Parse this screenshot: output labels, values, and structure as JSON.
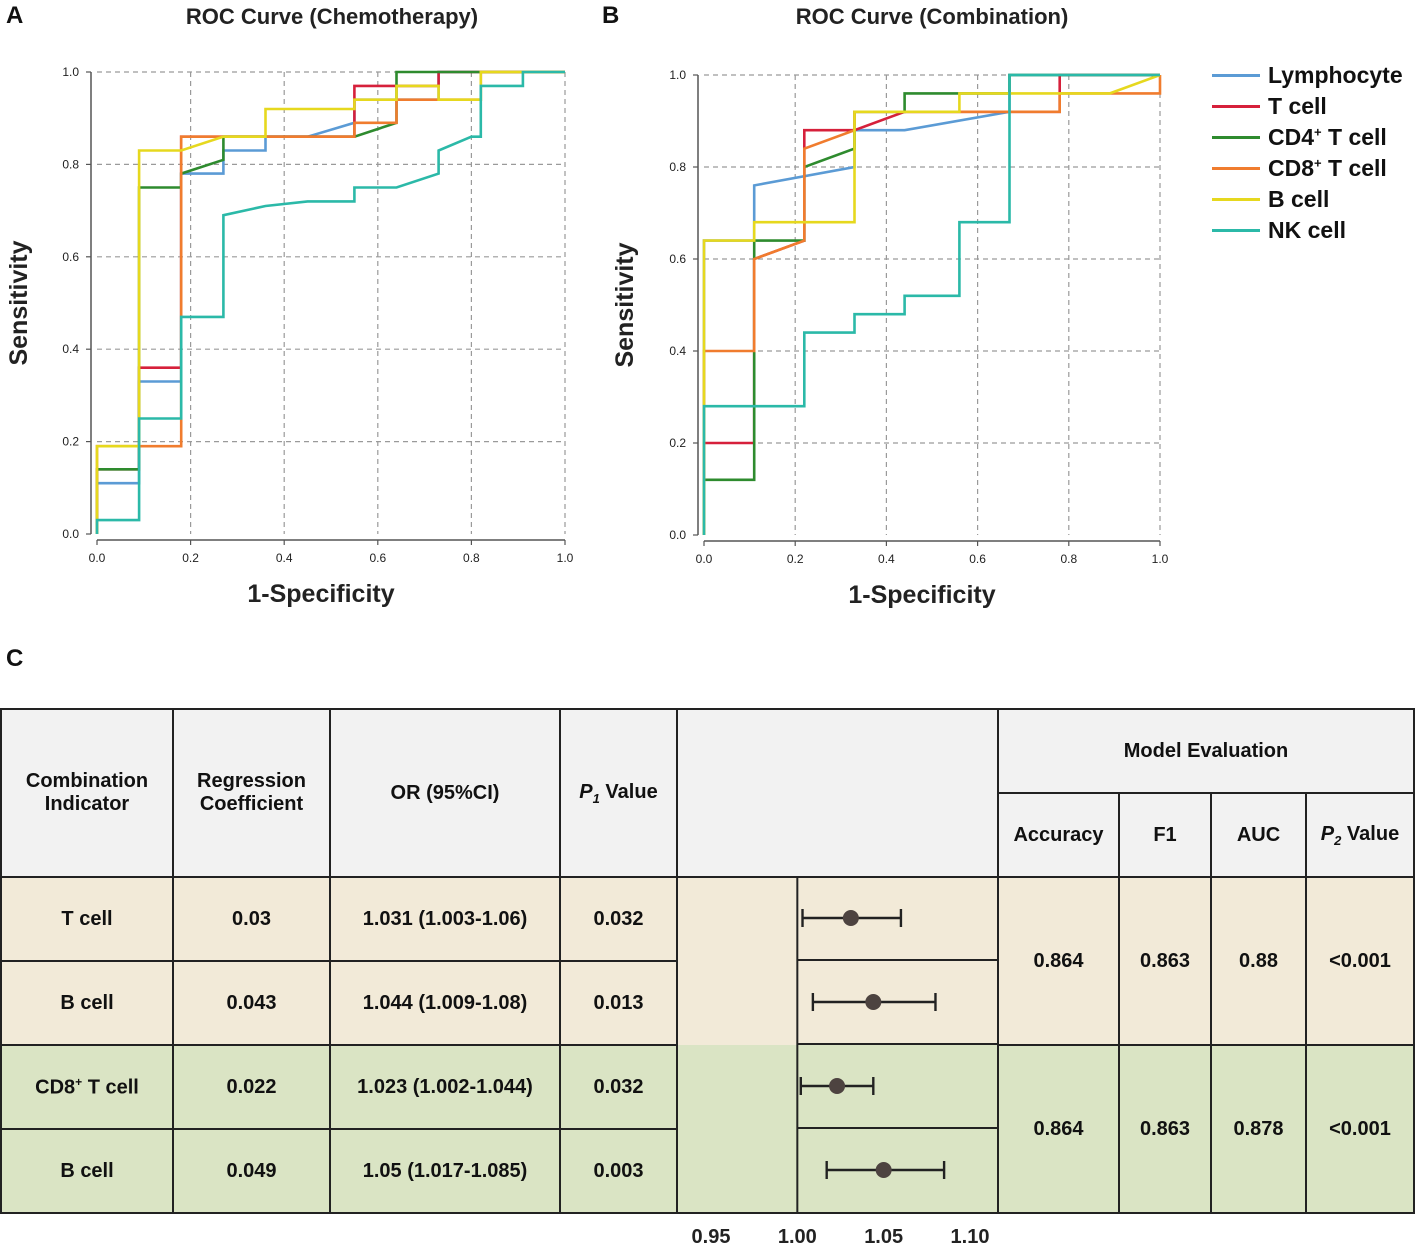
{
  "panels": {
    "a_letter": "A",
    "b_letter": "B",
    "c_letter": "C"
  },
  "colors": {
    "lymphocyte": "#5b9bd5",
    "t_cell": "#d6203b",
    "cd4": "#2e8b2e",
    "cd8": "#f07c2e",
    "b_cell": "#e6d81e",
    "nk_cell": "#2bb9a8",
    "grid": "#9a9a9a",
    "beige_row": "#f2ead8",
    "green_row": "#dae4c4",
    "header_bg": "#f2f2f2",
    "point": "#4d4340"
  },
  "legend": {
    "items": [
      {
        "key": "lymphocyte",
        "label": "Lymphocyte",
        "sup": "",
        "suffix": ""
      },
      {
        "key": "t_cell",
        "label": "T cell",
        "sup": "",
        "suffix": ""
      },
      {
        "key": "cd4",
        "label": "CD4",
        "sup": "+",
        "suffix": " T cell"
      },
      {
        "key": "cd8",
        "label": "CD8",
        "sup": "+",
        "suffix": " T cell"
      },
      {
        "key": "b_cell",
        "label": "B cell",
        "sup": "",
        "suffix": ""
      },
      {
        "key": "nk_cell",
        "label": "NK cell",
        "sup": "",
        "suffix": ""
      }
    ]
  },
  "chart_data": [
    {
      "type": "line",
      "title": "ROC Curve (Chemotherapy)",
      "xlabel": "1-Specificity",
      "ylabel": "Sensitivity",
      "xlim": [
        0,
        1
      ],
      "ylim": [
        0,
        1
      ],
      "xticks": [
        "0.0",
        "0.2",
        "0.4",
        "0.6",
        "0.8",
        "1.0"
      ],
      "yticks": [
        "0.0",
        "0.2",
        "0.4",
        "0.6",
        "0.8",
        "1.0"
      ],
      "grid": true,
      "series": [
        {
          "name": "Lymphocyte",
          "key": "lymphocyte",
          "points": [
            [
              0,
              0
            ],
            [
              0,
              0.11
            ],
            [
              0.09,
              0.11
            ],
            [
              0.09,
              0.33
            ],
            [
              0.18,
              0.33
            ],
            [
              0.18,
              0.78
            ],
            [
              0.27,
              0.78
            ],
            [
              0.27,
              0.83
            ],
            [
              0.36,
              0.83
            ],
            [
              0.36,
              0.86
            ],
            [
              0.45,
              0.86
            ],
            [
              0.55,
              0.89
            ],
            [
              0.55,
              0.94
            ],
            [
              0.73,
              0.94
            ],
            [
              0.73,
              1.0
            ],
            [
              1.0,
              1.0
            ]
          ]
        },
        {
          "name": "T cell",
          "key": "t_cell",
          "points": [
            [
              0,
              0
            ],
            [
              0,
              0.14
            ],
            [
              0.09,
              0.14
            ],
            [
              0.09,
              0.36
            ],
            [
              0.18,
              0.36
            ],
            [
              0.18,
              0.86
            ],
            [
              0.55,
              0.86
            ],
            [
              0.55,
              0.97
            ],
            [
              0.73,
              0.97
            ],
            [
              0.73,
              1.0
            ],
            [
              1.0,
              1.0
            ]
          ]
        },
        {
          "name": "CD4+ T cell",
          "key": "cd4",
          "points": [
            [
              0,
              0
            ],
            [
              0,
              0.14
            ],
            [
              0.09,
              0.14
            ],
            [
              0.09,
              0.75
            ],
            [
              0.18,
              0.75
            ],
            [
              0.18,
              0.78
            ],
            [
              0.27,
              0.81
            ],
            [
              0.27,
              0.86
            ],
            [
              0.55,
              0.86
            ],
            [
              0.64,
              0.89
            ],
            [
              0.64,
              1.0
            ],
            [
              1.0,
              1.0
            ]
          ]
        },
        {
          "name": "CD8+ T cell",
          "key": "cd8",
          "points": [
            [
              0,
              0
            ],
            [
              0,
              0.19
            ],
            [
              0.18,
              0.19
            ],
            [
              0.18,
              0.47
            ],
            [
              0.18,
              0.86
            ],
            [
              0.55,
              0.86
            ],
            [
              0.55,
              0.89
            ],
            [
              0.64,
              0.89
            ],
            [
              0.64,
              0.94
            ],
            [
              0.82,
              0.94
            ],
            [
              0.82,
              1.0
            ],
            [
              1.0,
              1.0
            ]
          ]
        },
        {
          "name": "B cell",
          "key": "b_cell",
          "points": [
            [
              0,
              0
            ],
            [
              0,
              0.19
            ],
            [
              0.09,
              0.19
            ],
            [
              0.09,
              0.83
            ],
            [
              0.18,
              0.83
            ],
            [
              0.27,
              0.86
            ],
            [
              0.36,
              0.86
            ],
            [
              0.36,
              0.92
            ],
            [
              0.55,
              0.92
            ],
            [
              0.55,
              0.94
            ],
            [
              0.64,
              0.94
            ],
            [
              0.64,
              0.97
            ],
            [
              0.73,
              0.97
            ],
            [
              0.73,
              0.94
            ],
            [
              0.82,
              0.94
            ],
            [
              0.82,
              1.0
            ],
            [
              1.0,
              1.0
            ]
          ]
        },
        {
          "name": "NK cell",
          "key": "nk_cell",
          "points": [
            [
              0,
              0
            ],
            [
              0,
              0.03
            ],
            [
              0.09,
              0.03
            ],
            [
              0.09,
              0.25
            ],
            [
              0.18,
              0.25
            ],
            [
              0.18,
              0.47
            ],
            [
              0.27,
              0.47
            ],
            [
              0.27,
              0.69
            ],
            [
              0.36,
              0.71
            ],
            [
              0.45,
              0.72
            ],
            [
              0.55,
              0.72
            ],
            [
              0.55,
              0.75
            ],
            [
              0.64,
              0.75
            ],
            [
              0.73,
              0.78
            ],
            [
              0.73,
              0.83
            ],
            [
              0.8,
              0.86
            ],
            [
              0.82,
              0.86
            ],
            [
              0.82,
              0.97
            ],
            [
              0.91,
              0.97
            ],
            [
              0.91,
              1.0
            ],
            [
              1.0,
              1.0
            ]
          ]
        }
      ]
    },
    {
      "type": "line",
      "title": "ROC Curve (Combination)",
      "xlabel": "1-Specificity",
      "ylabel": "Sensitivity",
      "xlim": [
        0,
        1
      ],
      "ylim": [
        0,
        1
      ],
      "xticks": [
        "0.0",
        "0.2",
        "0.4",
        "0.6",
        "0.8",
        "1.0"
      ],
      "yticks": [
        "0.0",
        "0.2",
        "0.4",
        "0.6",
        "0.8",
        "1.0"
      ],
      "grid": true,
      "series": [
        {
          "name": "Lymphocyte",
          "key": "lymphocyte",
          "points": [
            [
              0,
              0
            ],
            [
              0,
              0.64
            ],
            [
              0.11,
              0.64
            ],
            [
              0.11,
              0.76
            ],
            [
              0.33,
              0.8
            ],
            [
              0.33,
              0.88
            ],
            [
              0.44,
              0.88
            ],
            [
              0.67,
              0.92
            ],
            [
              0.67,
              1.0
            ],
            [
              1.0,
              1.0
            ]
          ]
        },
        {
          "name": "T cell",
          "key": "t_cell",
          "points": [
            [
              0,
              0
            ],
            [
              0,
              0.2
            ],
            [
              0.11,
              0.2
            ],
            [
              0.11,
              0.6
            ],
            [
              0.22,
              0.64
            ],
            [
              0.22,
              0.88
            ],
            [
              0.33,
              0.88
            ],
            [
              0.44,
              0.92
            ],
            [
              0.78,
              0.92
            ],
            [
              0.78,
              1.0
            ],
            [
              1.0,
              1.0
            ]
          ]
        },
        {
          "name": "CD4+ T cell",
          "key": "cd4",
          "points": [
            [
              0,
              0
            ],
            [
              0,
              0.12
            ],
            [
              0.11,
              0.12
            ],
            [
              0.11,
              0.64
            ],
            [
              0.22,
              0.64
            ],
            [
              0.22,
              0.8
            ],
            [
              0.33,
              0.84
            ],
            [
              0.33,
              0.92
            ],
            [
              0.44,
              0.92
            ],
            [
              0.44,
              0.96
            ],
            [
              0.67,
              0.96
            ],
            [
              0.67,
              1.0
            ],
            [
              1.0,
              1.0
            ]
          ]
        },
        {
          "name": "CD8+ T cell",
          "key": "cd8",
          "points": [
            [
              0,
              0
            ],
            [
              0,
              0.4
            ],
            [
              0.11,
              0.4
            ],
            [
              0.11,
              0.6
            ],
            [
              0.22,
              0.64
            ],
            [
              0.22,
              0.84
            ],
            [
              0.33,
              0.88
            ],
            [
              0.33,
              0.92
            ],
            [
              0.78,
              0.92
            ],
            [
              0.78,
              0.96
            ],
            [
              1.0,
              0.96
            ],
            [
              1.0,
              1.0
            ]
          ]
        },
        {
          "name": "B cell",
          "key": "b_cell",
          "points": [
            [
              0,
              0
            ],
            [
              0,
              0.64
            ],
            [
              0.11,
              0.64
            ],
            [
              0.11,
              0.68
            ],
            [
              0.33,
              0.68
            ],
            [
              0.33,
              0.92
            ],
            [
              0.56,
              0.92
            ],
            [
              0.56,
              0.96
            ],
            [
              0.89,
              0.96
            ],
            [
              1.0,
              1.0
            ]
          ]
        },
        {
          "name": "NK cell",
          "key": "nk_cell",
          "points": [
            [
              0,
              0
            ],
            [
              0,
              0.28
            ],
            [
              0.22,
              0.28
            ],
            [
              0.22,
              0.44
            ],
            [
              0.33,
              0.44
            ],
            [
              0.33,
              0.48
            ],
            [
              0.44,
              0.48
            ],
            [
              0.44,
              0.52
            ],
            [
              0.56,
              0.52
            ],
            [
              0.56,
              0.68
            ],
            [
              0.67,
              0.68
            ],
            [
              0.67,
              1.0
            ],
            [
              1.0,
              1.0
            ]
          ]
        }
      ]
    },
    {
      "type": "forest",
      "xlim": [
        0.95,
        1.1
      ],
      "xticks": [
        "0.95",
        "1.00",
        "1.05",
        "1.10"
      ],
      "reference": 1.0,
      "rows": [
        {
          "estimate": 1.031,
          "low": 1.003,
          "high": 1.06
        },
        {
          "estimate": 1.044,
          "low": 1.009,
          "high": 1.08
        },
        {
          "estimate": 1.023,
          "low": 1.002,
          "high": 1.044
        },
        {
          "estimate": 1.05,
          "low": 1.017,
          "high": 1.085
        }
      ]
    }
  ],
  "table": {
    "headers": {
      "indicator_line1": "Combination",
      "indicator_line2": "Indicator",
      "coef_line1": "Regression",
      "coef_line2": "Coefficient",
      "or": "OR (95%CI)",
      "p1_letter": "P",
      "p1_sub": "1",
      "p1_suffix": " Value",
      "model_eval": "Model Evaluation",
      "accuracy": "Accuracy",
      "f1": "F1",
      "auc": "AUC",
      "p2_letter": "P",
      "p2_sub": "2",
      "p2_suffix": " Value"
    },
    "rows": [
      {
        "indicator": "T cell",
        "indicator_sup": "",
        "indicator_suffix": "",
        "coef": "0.03",
        "or": "1.031 (1.003-1.06)",
        "p1": "0.032"
      },
      {
        "indicator": "B cell",
        "indicator_sup": "",
        "indicator_suffix": "",
        "coef": "0.043",
        "or": "1.044 (1.009-1.08)",
        "p1": "0.013"
      },
      {
        "indicator": "CD8",
        "indicator_sup": "+",
        "indicator_suffix": " T cell",
        "coef": "0.022",
        "or": "1.023 (1.002-1.044)",
        "p1": "0.032"
      },
      {
        "indicator": "B cell",
        "indicator_sup": "",
        "indicator_suffix": "",
        "coef": "0.049",
        "or": "1.05 (1.017-1.085)",
        "p1": "0.003"
      }
    ],
    "groups": [
      {
        "accuracy": "0.864",
        "f1": "0.863",
        "auc": "0.88",
        "p2": "<0.001"
      },
      {
        "accuracy": "0.864",
        "f1": "0.863",
        "auc": "0.878",
        "p2": "<0.001"
      }
    ]
  }
}
